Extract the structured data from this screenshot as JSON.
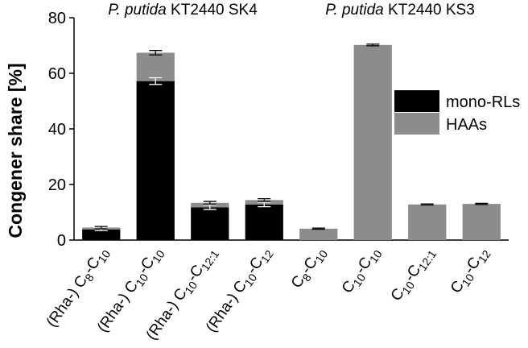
{
  "chart_data": {
    "type": "bar",
    "stacked": true,
    "ylabel": "Congener share [%]",
    "ylim": [
      0,
      80
    ],
    "yticks": [
      0,
      20,
      40,
      60,
      80
    ],
    "groups": [
      {
        "name_italic": "P. putida",
        "name_rest": " KT2440 SK4"
      },
      {
        "name_italic": "P. putida",
        "name_rest": " KT2440 KS3"
      }
    ],
    "categories": [
      {
        "prefix": "(Rha-) ",
        "a": "C",
        "a_sub": "8",
        "b": "C",
        "b_sub": "10"
      },
      {
        "prefix": "(Rha-) ",
        "a": "C",
        "a_sub": "10",
        "b": "C",
        "b_sub": "10"
      },
      {
        "prefix": "(Rha-) ",
        "a": "C",
        "a_sub": "10",
        "b": "C",
        "b_sub": "12:1"
      },
      {
        "prefix": "(Rha-) ",
        "a": "C",
        "a_sub": "10",
        "b": "C",
        "b_sub": "12"
      },
      {
        "prefix": "",
        "a": "C",
        "a_sub": "8",
        "b": "C",
        "b_sub": "10"
      },
      {
        "prefix": "",
        "a": "C",
        "a_sub": "10",
        "b": "C",
        "b_sub": "10"
      },
      {
        "prefix": "",
        "a": "C",
        "a_sub": "10",
        "b": "C",
        "b_sub": "12:1"
      },
      {
        "prefix": "",
        "a": "C",
        "a_sub": "10",
        "b": "C",
        "b_sub": "12"
      }
    ],
    "series": [
      {
        "name": "mono-RLs",
        "color": "#000000",
        "values": [
          3.8,
          57.2,
          11.8,
          12.8,
          0,
          0,
          0,
          0
        ],
        "errors": [
          0.4,
          1.2,
          0.8,
          0.8,
          0,
          0,
          0,
          0
        ]
      },
      {
        "name": "HAAs",
        "color": "#8c8c8c",
        "values": [
          0.7,
          10.2,
          1.6,
          1.6,
          4.1,
          70.2,
          12.8,
          13.0
        ],
        "errors": [
          0.4,
          0.8,
          0.5,
          0.5,
          0.2,
          0.3,
          0.2,
          0.2
        ]
      }
    ],
    "legend": "right",
    "grid": false
  }
}
